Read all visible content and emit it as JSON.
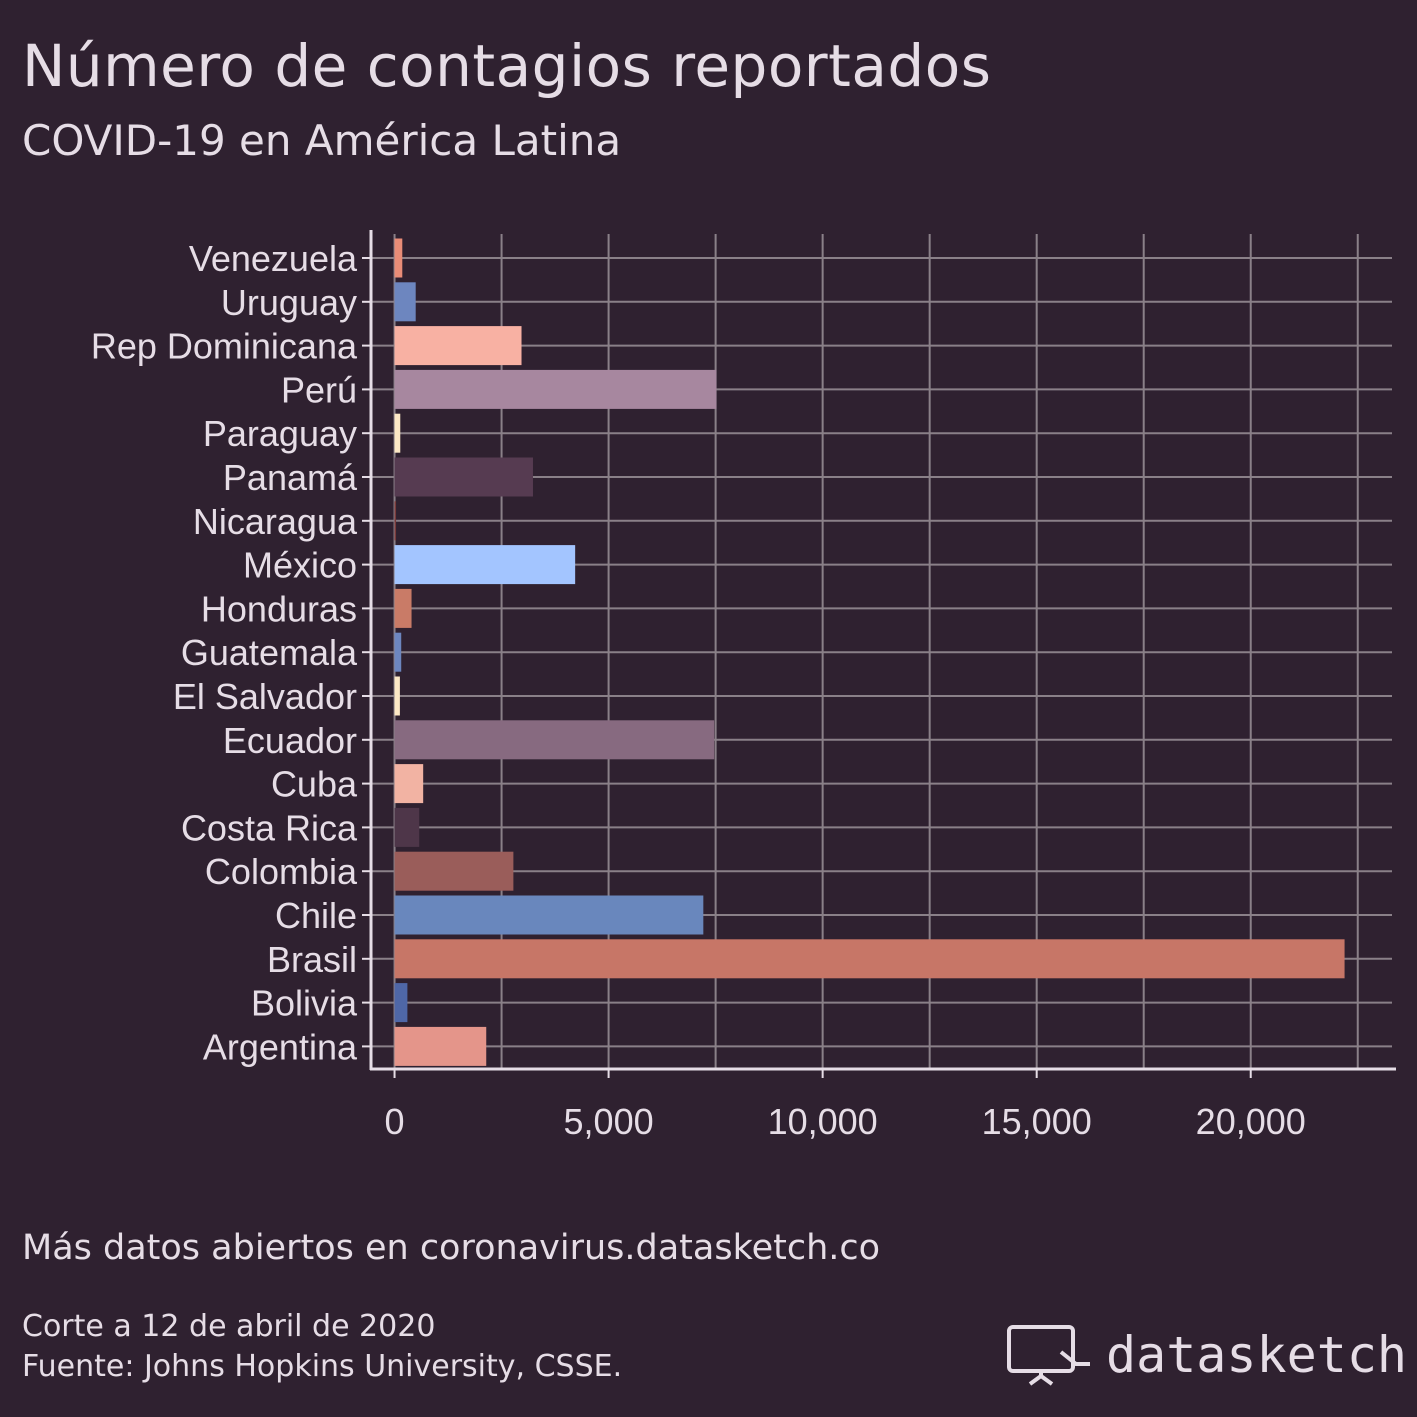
{
  "title": "Número de contagios reportados",
  "subtitle": "COVID-19 en América Latina",
  "caption": {
    "more": "Más datos abiertos en coronavirus.datasketch.co",
    "date": "Corte a 12 de abril de 2020",
    "source": "Fuente: Johns Hopkins University, CSSE."
  },
  "logo": {
    "text": "datasketch",
    "icon": "monitor-cursor-icon"
  },
  "colors": {
    "background": "#2f2130",
    "grid": "#8a8088",
    "axis": "#e6dde6",
    "text": "#e6dde6"
  },
  "chart_data": {
    "type": "bar",
    "orientation": "horizontal",
    "xlabel": "",
    "ylabel": "",
    "xlim": [
      -550,
      23300
    ],
    "xticks": [
      0,
      5000,
      10000,
      15000,
      20000
    ],
    "xtick_labels": [
      "0",
      "5,000",
      "10,000",
      "15,000",
      "20,000"
    ],
    "grid": true,
    "categories": [
      "Venezuela",
      "Uruguay",
      "Rep Dominicana",
      "Perú",
      "Paraguay",
      "Panamá",
      "Nicaragua",
      "México",
      "Honduras",
      "Guatemala",
      "El Salvador",
      "Ecuador",
      "Cuba",
      "Costa Rica",
      "Colombia",
      "Chile",
      "Brasil",
      "Bolivia",
      "Argentina"
    ],
    "values": [
      181,
      494,
      2966,
      7519,
      134,
      3234,
      9,
      4219,
      397,
      156,
      125,
      7466,
      669,
      577,
      2776,
      7213,
      22192,
      300,
      2142
    ],
    "bar_colors": [
      "#e98c77",
      "#6d86bf",
      "#f8b1a3",
      "#a7879f",
      "#fce8c5",
      "#563b51",
      "#7a3a3a",
      "#a3c5ff",
      "#c97b67",
      "#6d86bf",
      "#fce8c5",
      "#876a80",
      "#f2b3a3",
      "#4e3649",
      "#9a5d5a",
      "#6987bd",
      "#c77667",
      "#4f67a7",
      "#e4958a"
    ]
  }
}
